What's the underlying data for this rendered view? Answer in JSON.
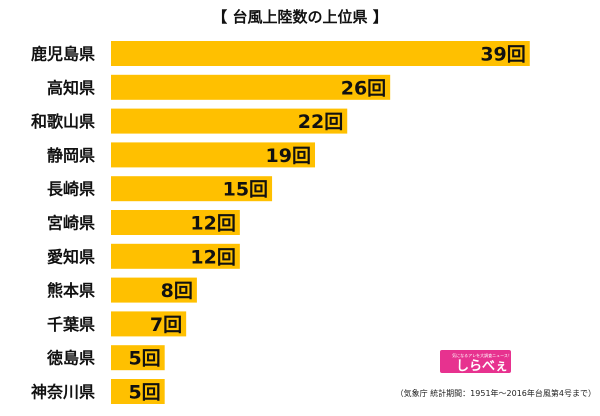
{
  "chart_data": {
    "type": "bar",
    "orientation": "horizontal",
    "title": "【 台風上陸数の上位県 】",
    "categories": [
      "鹿児島県",
      "高知県",
      "和歌山県",
      "静岡県",
      "長崎県",
      "宮崎県",
      "愛知県",
      "熊本県",
      "千葉県",
      "徳島県",
      "神奈川県"
    ],
    "values": [
      39,
      26,
      22,
      19,
      15,
      12,
      12,
      8,
      7,
      5,
      5
    ],
    "value_suffix": "回",
    "xlim": [
      0,
      40
    ],
    "xlabel": "",
    "ylabel": "",
    "grid": false,
    "legend": "none",
    "bar_color": "#FFC000",
    "source_note": "（気象庁 統計期間：1951年〜2016年台風第4号まで）"
  },
  "logo": {
    "text": "しらべぇ",
    "tagline": "気になるアレを大調査ニュース！",
    "color": "#E7328F"
  }
}
